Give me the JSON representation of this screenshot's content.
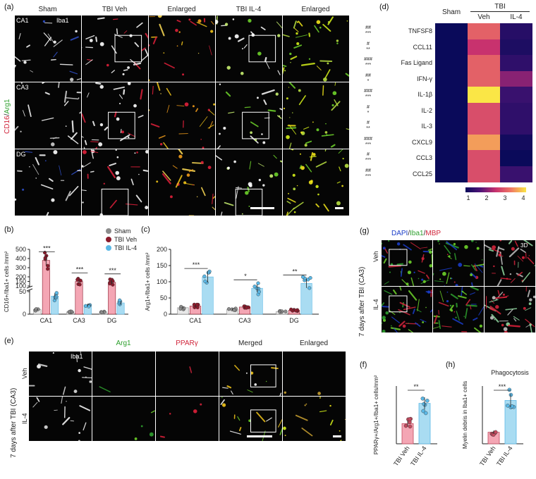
{
  "panel_labels": {
    "a": "(a)",
    "b": "(b)",
    "c": "(c)",
    "d": "(d)",
    "e": "(e)",
    "f": "(f)",
    "g": "(g)",
    "h": "(h)"
  },
  "panel_a": {
    "columns": [
      "Sham",
      "TBI Veh",
      "Enlarged",
      "TBI IL-4",
      "Enlarged"
    ],
    "rows": [
      "CA1",
      "CA3",
      "DG"
    ],
    "marker_iba1": "Iba1",
    "side_label_red": "CD16",
    "side_label_sep": "/",
    "side_label_green": "Arg1",
    "colors": {
      "red": "#e0203a",
      "green": "#6dd22a",
      "yellow": "#f2c51a",
      "white": "#ffffff"
    }
  },
  "panel_d": {
    "header_sham": "Sham",
    "header_tbi": "TBI",
    "header_veh": "Veh",
    "header_il4": "IL-4",
    "cytokines": [
      "TNFSF8",
      "CCL11",
      "Fas Ligand",
      "IFN-γ",
      "IL-1β",
      "IL-2",
      "IL-3",
      "CXCL9",
      "CCL3",
      "CCL25"
    ],
    "sig_hash": [
      "##",
      "#",
      "###",
      "##",
      "###",
      "#",
      "#",
      "###",
      "#",
      "##"
    ],
    "sig_star": [
      "***",
      "**",
      "***",
      "*",
      "***",
      "*",
      "**",
      "***",
      "***",
      "***"
    ],
    "colorbar_ticks": [
      "1",
      "2",
      "3",
      "4"
    ]
  },
  "panel_e": {
    "columns": [
      "Iba1",
      "Arg1",
      "PPARγ",
      "Merged",
      "Enlarged"
    ],
    "column_colors": [
      "#ffffff",
      "#2ea02e",
      "#d0243a",
      "#222222",
      "#222222"
    ],
    "rows": [
      "Veh",
      "IL-4"
    ],
    "side_label": "7 days after TBI (CA3)"
  },
  "panel_g": {
    "title_dapi": "DAPI",
    "title_iba1": "Iba1",
    "title_mbp": "MBP",
    "sep": "/",
    "rows": [
      "Veh",
      "IL-4"
    ],
    "side_label": "7 days after TBI (CA3)",
    "tag_3d": "3D"
  },
  "legend": {
    "items": [
      "Sham",
      "TBI Veh",
      "TBI IL-4"
    ],
    "colors": [
      "#8c8c8c",
      "#8b1a2b",
      "#5bb8e6"
    ]
  },
  "chart_data": [
    {
      "id": "b",
      "type": "bar",
      "ylabel": "CD16+/Iba1+ cells /mm²",
      "categories": [
        "CA1",
        "CA3",
        "DG"
      ],
      "series": [
        {
          "name": "Sham",
          "values": [
            10,
            5,
            5
          ]
        },
        {
          "name": "TBI Veh",
          "values": [
            380,
            150,
            140
          ]
        },
        {
          "name": "TBI IL-4",
          "values": [
            40,
            20,
            25
          ]
        }
      ],
      "yticks": [
        "0",
        "50",
        "100",
        "150",
        "200",
        "300",
        "400",
        "500"
      ],
      "significance": [
        "***",
        "***",
        "***"
      ],
      "axis_break": [
        50,
        100
      ]
    },
    {
      "id": "c",
      "type": "bar",
      "ylabel": "Arg1+/Iba1+ cells /mm²",
      "categories": [
        "CA1",
        "CA3",
        "DG"
      ],
      "series": [
        {
          "name": "Sham",
          "values": [
            20,
            15,
            8
          ]
        },
        {
          "name": "TBI Veh",
          "values": [
            25,
            22,
            12
          ]
        },
        {
          "name": "TBI IL-4",
          "values": [
            115,
            80,
            95
          ]
        }
      ],
      "yticks": [
        "0",
        "50",
        "100",
        "150",
        "200"
      ],
      "ylim": [
        0,
        200
      ],
      "significance": [
        "***",
        "*",
        "**"
      ]
    },
    {
      "id": "d",
      "type": "heatmap",
      "rows": [
        "TNFSF8",
        "CCL11",
        "Fas Ligand",
        "IFN-γ",
        "IL-1β",
        "IL-2",
        "IL-3",
        "CXCL9",
        "CCL3",
        "CCL25"
      ],
      "columns": [
        "Sham",
        "Veh",
        "IL-4"
      ],
      "values": [
        [
          1,
          3.0,
          1.3
        ],
        [
          1,
          2.5,
          1.2
        ],
        [
          1,
          3.0,
          1.4
        ],
        [
          1,
          3.0,
          2.1
        ],
        [
          1,
          4.0,
          1.5
        ],
        [
          1,
          2.8,
          1.4
        ],
        [
          1,
          2.8,
          1.4
        ],
        [
          1,
          3.5,
          1.1
        ],
        [
          1,
          2.8,
          1.0
        ],
        [
          1,
          2.8,
          1.5
        ]
      ],
      "scale": [
        1,
        4
      ]
    },
    {
      "id": "f",
      "type": "bar",
      "ylabel": "PPARγ+/Arg1+/Iba1+ cells/mm²",
      "categories": [
        "TBI Veh",
        "TBI IL-4"
      ],
      "values": [
        35,
        70
      ],
      "colors": [
        "#c24a5e",
        "#5bb8e6"
      ],
      "significance": "**"
    },
    {
      "id": "h",
      "type": "bar",
      "title": "Phagocytosis",
      "ylabel": "Myelin debris in Iba1+ cells",
      "categories": [
        "TBI Veh",
        "TBI IL-4"
      ],
      "values": [
        2,
        7.5
      ],
      "colors": [
        "#c24a5e",
        "#5bb8e6"
      ],
      "significance": "***"
    }
  ]
}
